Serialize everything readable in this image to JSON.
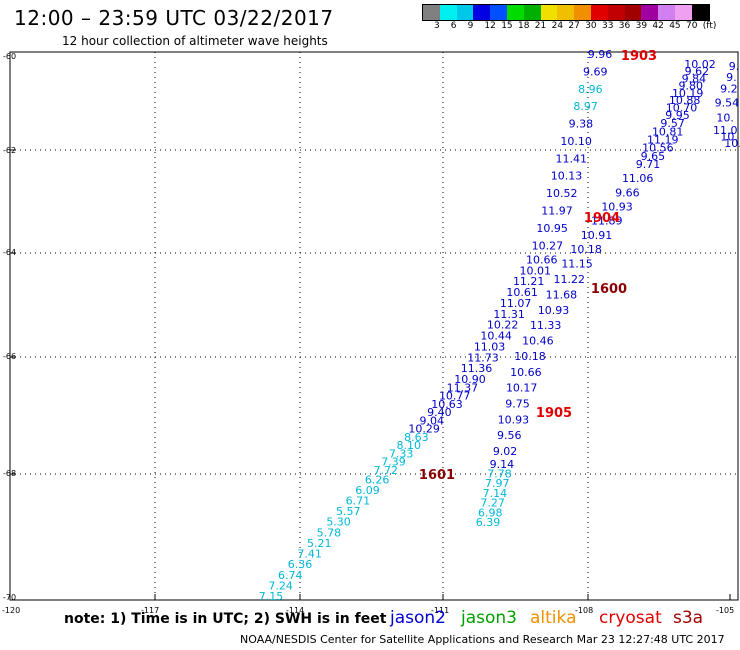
{
  "title": "12:00  –  23:59 UTC 03/22/2017",
  "subtitle": "12 hour collection of altimeter wave heights",
  "scale": {
    "colors": [
      "#808080",
      "#00f0f0",
      "#00c8e8",
      "#0000e0",
      "#0050ff",
      "#00dc00",
      "#00b000",
      "#f0e000",
      "#f0c000",
      "#f09000",
      "#e00000",
      "#c00000",
      "#a00000",
      "#a000a0",
      "#d080f0",
      "#f0a0f0",
      "#000000"
    ],
    "labels": [
      "3",
      "6",
      "9",
      "12",
      "15",
      "18",
      "21",
      "24",
      "27",
      "30",
      "33",
      "36",
      "39",
      "42",
      "45",
      "70",
      "(ft)"
    ]
  },
  "axes": {
    "y_labels": [
      "-60",
      "-62",
      "-64",
      "-66",
      "-68",
      "-70"
    ],
    "x_labels": [
      "-120",
      "-117",
      "-114",
      "-111",
      "-108",
      "-105"
    ]
  },
  "track_labels": [
    {
      "text": "1903",
      "color": "#e00000"
    },
    {
      "text": "1904",
      "color": "#e00000"
    },
    {
      "text": "1600",
      "color": "#8b0000"
    },
    {
      "text": "1905",
      "color": "#e00000"
    },
    {
      "text": "1601",
      "color": "#8b0000"
    }
  ],
  "tracks": [
    {
      "name": "jason2-west-pass",
      "color_dark": "#0000c8",
      "color_light": "#00b8d8",
      "values": [
        "7.15",
        "7.24",
        "6.74",
        "6.36",
        "7.41",
        "5.21",
        "5.78",
        "5.30",
        "5.57",
        "6.71",
        "6.09",
        "6.26",
        "7.72",
        "7.39",
        "7.33",
        "8.10",
        "8.63",
        "10.29",
        "9.04",
        "9.40",
        "10.63",
        "10.77",
        "11.37",
        "10.90",
        "11.36",
        "11.73",
        "11.03",
        "10.44",
        "10.22",
        "11.31",
        "11.07",
        "10.61",
        "11.21",
        "10.01",
        "10.66",
        "10.27",
        "10.95",
        "11.97",
        "10.52",
        "10.13",
        "11.41",
        "10.10",
        "9.38",
        "8.97",
        "8.96",
        "9.69",
        "9.96"
      ]
    },
    {
      "name": "jason2-return-pass",
      "color_dark": "#0000c8",
      "color_light": "#00b8d8",
      "values": [
        "6.39",
        "6.98",
        "7.27",
        "7.14",
        "7.97",
        "7.78",
        "9.14",
        "9.02",
        "9.56",
        "10.93",
        "9.75",
        "10.17",
        "10.66",
        "10.18",
        "10.46",
        "11.33",
        "10.93",
        "11.68",
        "11.22",
        "11.15",
        "10.18",
        "10.91",
        "11.89",
        "10.93",
        "9.66",
        "11.06",
        "9.71",
        "9.65",
        "10.56",
        "11.19",
        "10.81",
        "9.57",
        "9.95",
        "10.70",
        "10.88",
        "10.19",
        "9.80",
        "9.84",
        "9.62",
        "10.02"
      ]
    },
    {
      "name": "jason2-east-edge",
      "color_dark": "#0000c8",
      "color_light": "#00b8d8",
      "values": [
        "9.",
        "9.",
        "9.2",
        "9.54",
        "10.",
        "11.0",
        "10.",
        "10."
      ]
    }
  ],
  "note": "note:  1) Time is in UTC;  2) SWH is in feet",
  "legend": [
    {
      "label": "jason2",
      "color": "#0000d0"
    },
    {
      "label": "jason3",
      "color": "#00a000"
    },
    {
      "label": "altika",
      "color": "#f09000"
    },
    {
      "label": "cryosat",
      "color": "#e00000"
    },
    {
      "label": "s3a",
      "color": "#a00000"
    }
  ],
  "footer": "NOAA/NESDIS Center for Satellite Applications and Research    Mar 23 12:27:48 UTC 2017"
}
